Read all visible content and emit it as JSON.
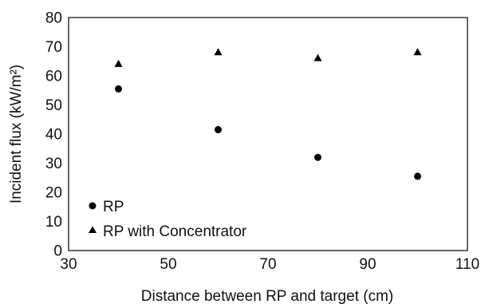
{
  "chart_data": {
    "type": "scatter",
    "xlabel": "Distance between RP and target (cm)",
    "ylabel": "Incident flux (kW/m²)",
    "xlim": [
      30,
      110
    ],
    "ylim": [
      0,
      80
    ],
    "xticks": [
      30,
      50,
      70,
      90,
      110
    ],
    "yticks": [
      0,
      10,
      20,
      30,
      40,
      50,
      60,
      70,
      80
    ],
    "grid": false,
    "legend_position": "bottom-left",
    "series": [
      {
        "name": "RP",
        "marker": "circle",
        "color": "#000000",
        "x": [
          40,
          60,
          80,
          100
        ],
        "y": [
          55.5,
          41.5,
          32,
          25.5
        ]
      },
      {
        "name": "RP with Concentrator",
        "marker": "triangle",
        "color": "#000000",
        "x": [
          40,
          60,
          80,
          100
        ],
        "y": [
          64,
          68,
          66,
          68
        ]
      }
    ]
  }
}
